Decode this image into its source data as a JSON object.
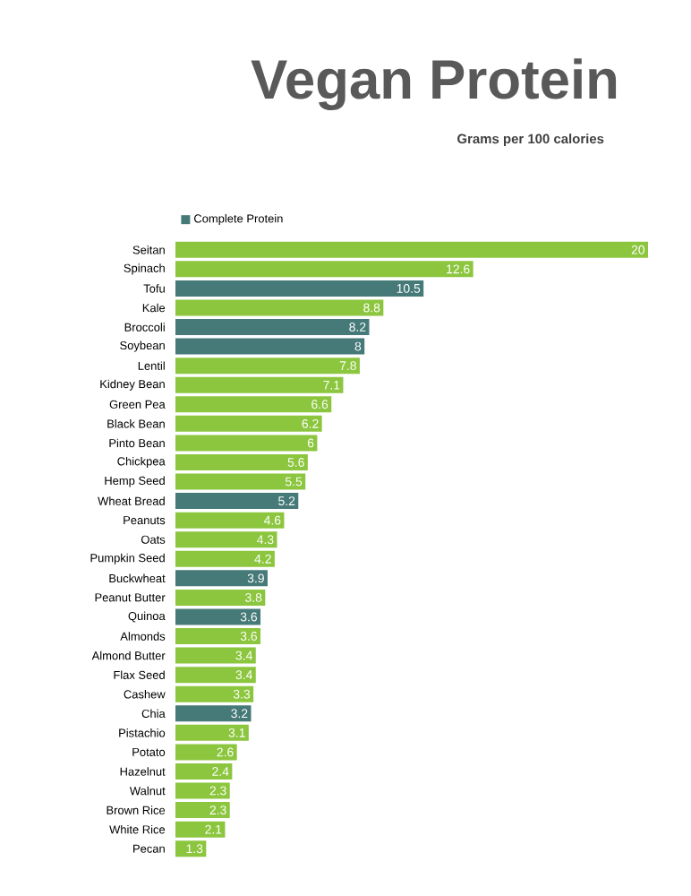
{
  "chart_data": {
    "type": "bar",
    "orientation": "horizontal",
    "title": "Vegan Protein",
    "subtitle": "Grams per 100 calories",
    "categories": [
      "Seitan",
      "Spinach",
      "Tofu",
      "Kale",
      "Broccoli",
      "Soybean",
      "Lentil",
      "Kidney Bean",
      "Green Pea",
      "Black Bean",
      "Pinto Bean",
      "Chickpea",
      "Hemp Seed",
      "Wheat Bread",
      "Peanuts",
      "Oats",
      "Pumpkin Seed",
      "Buckwheat",
      "Peanut Butter",
      "Quinoa",
      "Almonds",
      "Almond Butter",
      "Flax Seed",
      "Cashew",
      "Chia",
      "Pistachio",
      "Potato",
      "Hazelnut",
      "Walnut",
      "Brown Rice",
      "White Rice",
      "Pecan"
    ],
    "series": [
      {
        "color": "#8cc63f",
        "values": [
          20,
          12.6,
          null,
          8.8,
          null,
          null,
          7.8,
          7.1,
          6.6,
          6.2,
          6,
          5.6,
          5.5,
          null,
          4.6,
          4.3,
          4.2,
          null,
          3.8,
          null,
          3.6,
          3.4,
          3.4,
          3.3,
          null,
          3.1,
          2.6,
          2.4,
          2.3,
          2.3,
          2.1,
          1.3
        ]
      },
      {
        "name": "Complete Protein",
        "color": "#467a78",
        "values": [
          null,
          null,
          10.5,
          null,
          8.2,
          8,
          null,
          null,
          null,
          null,
          null,
          null,
          null,
          5.2,
          null,
          null,
          null,
          3.9,
          null,
          3.6,
          null,
          null,
          null,
          null,
          3.2,
          null,
          null,
          null,
          null,
          null,
          null,
          null
        ]
      }
    ],
    "data_labels": true,
    "legend": "top left"
  }
}
